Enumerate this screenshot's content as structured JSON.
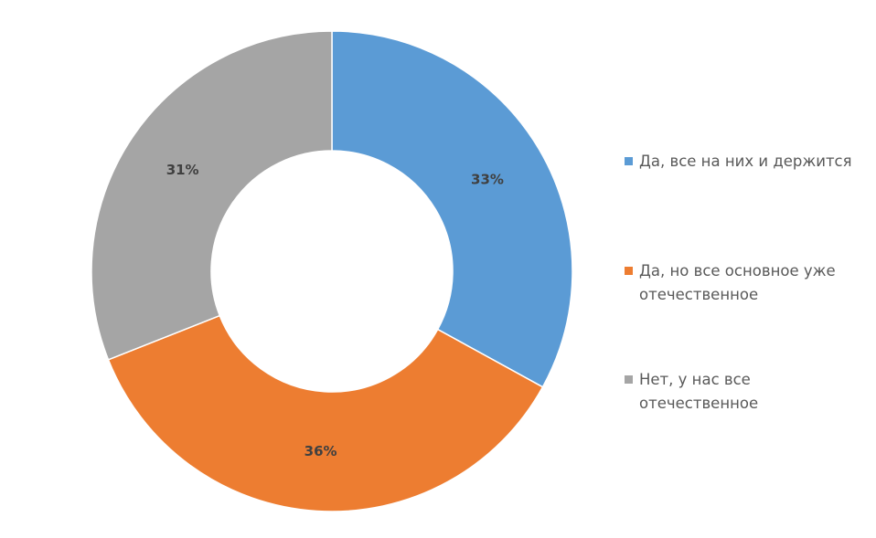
{
  "chart_data": {
    "type": "pie",
    "donut": true,
    "categories": [
      "Да, все на них и держится",
      "Да, но все основное уже отечественное",
      "Нет, у нас все отечественное"
    ],
    "values": [
      33,
      36,
      31
    ],
    "data_labels": [
      "33%",
      "36%",
      "31%"
    ],
    "colors": [
      "#5B9BD5",
      "#ED7D31",
      "#A5A5A5"
    ],
    "legend_position": "right",
    "start_angle": "top, clockwise"
  }
}
